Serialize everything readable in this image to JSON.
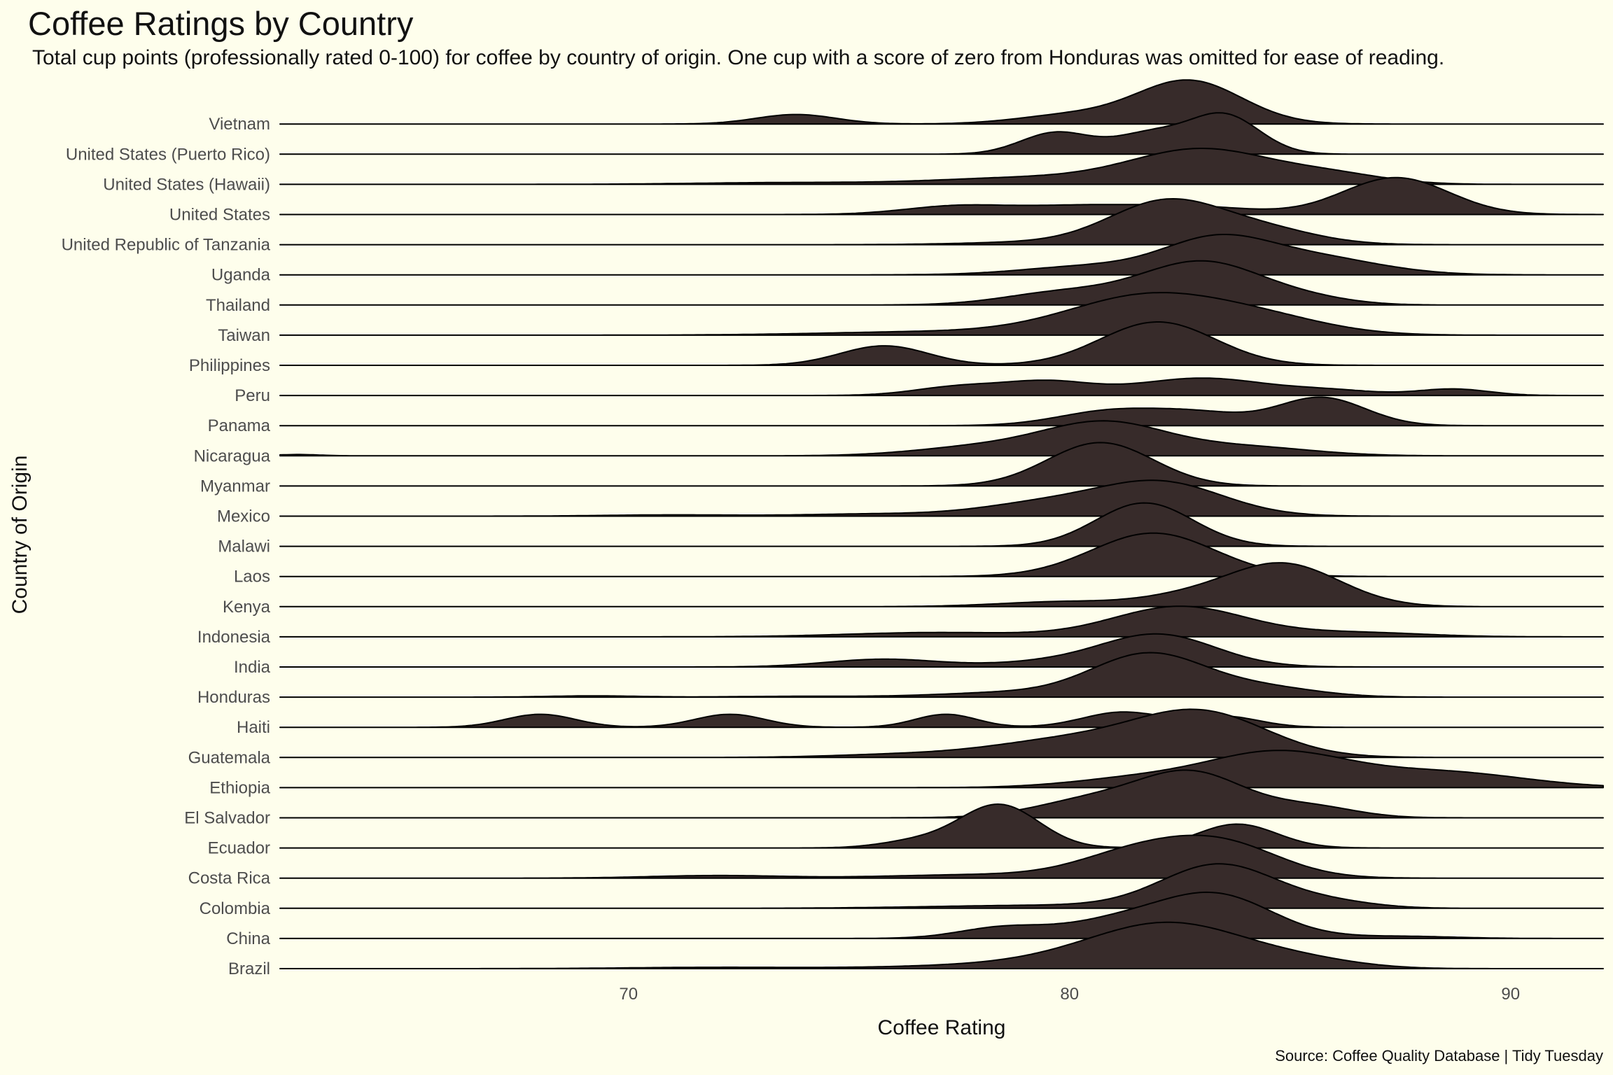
{
  "chart_data": {
    "type": "ridgeline",
    "title": "Coffee Ratings by Country",
    "subtitle": "Total cup points (professionally rated 0-100) for coffee by country of origin. One cup with a score of zero from Honduras was omitted for ease of reading.",
    "xlabel": "Coffee Rating",
    "ylabel": "Country of Origin",
    "caption": "Source: Coffee Quality Database | Tidy Tuesday",
    "xlim": [
      62.1,
      92.1
    ],
    "xticks": [
      70,
      80,
      90
    ],
    "fill_color": "#372b2a",
    "background_color": "#fefeec",
    "grid": false,
    "legend": "none",
    "series": [
      {
        "name": "Brazil",
        "peaks": [
          [
            82.3,
            1.0,
            1.8
          ],
          [
            79.5,
            0.12,
            2.5
          ],
          [
            85.5,
            0.12,
            1.2
          ],
          [
            72,
            0.03,
            2
          ]
        ]
      },
      {
        "name": "China",
        "peaks": [
          [
            83.3,
            1.0,
            1.3
          ],
          [
            78.5,
            0.25,
            1.0
          ],
          [
            81,
            0.35,
            1.2
          ],
          [
            87.5,
            0.05,
            1.2
          ]
        ]
      },
      {
        "name": "Colombia",
        "peaks": [
          [
            83.4,
            1.0,
            1.3
          ],
          [
            79.5,
            0.07,
            2.5
          ],
          [
            86,
            0.12,
            1.0
          ]
        ]
      },
      {
        "name": "Costa Rica",
        "peaks": [
          [
            83.5,
            0.75,
            1.3
          ],
          [
            81.5,
            0.55,
            1.3
          ],
          [
            78,
            0.08,
            2
          ],
          [
            72,
            0.06,
            1.5
          ]
        ]
      },
      {
        "name": "Ecuador",
        "peaks": [
          [
            78.4,
            1.0,
            0.9
          ],
          [
            83.8,
            0.55,
            0.9
          ],
          [
            76.5,
            0.15,
            0.8
          ]
        ]
      },
      {
        "name": "El Salvador",
        "peaks": [
          [
            82.8,
            1.0,
            1.2
          ],
          [
            80.5,
            0.4,
            1.3
          ],
          [
            85.5,
            0.25,
            1.0
          ]
        ]
      },
      {
        "name": "Ethiopia",
        "peaks": [
          [
            84.7,
            0.8,
            1.6
          ],
          [
            88.5,
            0.35,
            1.8
          ],
          [
            81.5,
            0.2,
            1.5
          ]
        ]
      },
      {
        "name": "Guatemala",
        "peaks": [
          [
            83,
            1.0,
            1.5
          ],
          [
            80,
            0.4,
            1.8
          ],
          [
            76,
            0.06,
            1.5
          ]
        ]
      },
      {
        "name": "Haiti",
        "peaks": [
          [
            81.2,
            0.35,
            0.9
          ],
          [
            68,
            0.3,
            0.8
          ],
          [
            72.3,
            0.3,
            0.8
          ],
          [
            77.2,
            0.3,
            0.7
          ],
          [
            83.5,
            0.25,
            0.8
          ]
        ]
      },
      {
        "name": "Honduras",
        "peaks": [
          [
            81.8,
            1.0,
            1.3
          ],
          [
            84.5,
            0.2,
            1.2
          ],
          [
            78.5,
            0.1,
            1.5
          ],
          [
            69.2,
            0.03,
            1.0
          ],
          [
            74,
            0.02,
            1.5
          ]
        ]
      },
      {
        "name": "India",
        "peaks": [
          [
            82,
            0.75,
            1.3
          ],
          [
            75.8,
            0.18,
            1.3
          ],
          [
            79.5,
            0.1,
            1.2
          ]
        ]
      },
      {
        "name": "Indonesia",
        "peaks": [
          [
            82.5,
            0.7,
            1.5
          ],
          [
            77,
            0.1,
            2
          ],
          [
            86.5,
            0.1,
            1.5
          ]
        ]
      },
      {
        "name": "Kenya",
        "peaks": [
          [
            84.8,
            1.0,
            1.3
          ],
          [
            80,
            0.12,
            1.5
          ],
          [
            82.5,
            0.15,
            1.0
          ]
        ]
      },
      {
        "name": "Laos",
        "peaks": [
          [
            81.9,
            1.0,
            1.4
          ]
        ]
      },
      {
        "name": "Malawi",
        "peaks": [
          [
            81.7,
            1.0,
            1.1
          ]
        ]
      },
      {
        "name": "Mexico",
        "peaks": [
          [
            82.1,
            0.75,
            1.4
          ],
          [
            79.5,
            0.3,
            1.5
          ],
          [
            75.5,
            0.05,
            1.5
          ],
          [
            71,
            0.03,
            1.5
          ]
        ]
      },
      {
        "name": "Myanmar",
        "peaks": [
          [
            80.7,
            1.0,
            1.2
          ]
        ]
      },
      {
        "name": "Nicaragua",
        "peaks": [
          [
            80.8,
            0.75,
            1.4
          ],
          [
            84,
            0.2,
            1.5
          ],
          [
            78,
            0.2,
            1.5
          ],
          [
            62.5,
            0.03,
            0.5
          ]
        ]
      },
      {
        "name": "Panama",
        "peaks": [
          [
            85.7,
            0.65,
            1.0
          ],
          [
            81,
            0.35,
            1.2
          ],
          [
            83,
            0.25,
            1.0
          ]
        ]
      },
      {
        "name": "Peru",
        "peaks": [
          [
            83,
            0.4,
            1.5
          ],
          [
            79.5,
            0.3,
            1.0
          ],
          [
            77.5,
            0.2,
            1.0
          ],
          [
            88.7,
            0.15,
            0.8
          ],
          [
            86,
            0.1,
            1.0
          ]
        ]
      },
      {
        "name": "Philippines",
        "peaks": [
          [
            82,
            1.0,
            1.3
          ],
          [
            75.8,
            0.45,
            1.0
          ]
        ]
      },
      {
        "name": "Taiwan",
        "peaks": [
          [
            81.8,
            0.9,
            1.8
          ],
          [
            84.5,
            0.3,
            1.5
          ],
          [
            77,
            0.08,
            2.5
          ]
        ]
      },
      {
        "name": "Thailand",
        "peaks": [
          [
            83,
            1.0,
            1.4
          ],
          [
            79.8,
            0.28,
            1.3
          ],
          [
            85.5,
            0.1,
            1.0
          ]
        ]
      },
      {
        "name": "Uganda",
        "peaks": [
          [
            83.3,
            0.75,
            1.2
          ],
          [
            85.5,
            0.4,
            1.5
          ],
          [
            80.5,
            0.2,
            1.5
          ]
        ]
      },
      {
        "name": "United Republic of Tanzania",
        "peaks": [
          [
            82.2,
            1.0,
            1.3
          ],
          [
            84.5,
            0.3,
            1.2
          ],
          [
            79,
            0.05,
            1.5
          ]
        ]
      },
      {
        "name": "United States",
        "peaks": [
          [
            87.4,
            0.85,
            1.2
          ],
          [
            82.5,
            0.2,
            1.5
          ],
          [
            77.5,
            0.2,
            1.2
          ],
          [
            80,
            0.15,
            1.2
          ]
        ]
      },
      {
        "name": "United States (Hawaii)",
        "peaks": [
          [
            83,
            0.8,
            1.6
          ],
          [
            79,
            0.15,
            2
          ],
          [
            73.5,
            0.04,
            2
          ],
          [
            86,
            0.2,
            1.2
          ]
        ]
      },
      {
        "name": "United States (Puerto Rico)",
        "peaks": [
          [
            83.5,
            0.9,
            0.8
          ],
          [
            79.7,
            0.5,
            0.8
          ],
          [
            81.8,
            0.45,
            0.8
          ]
        ]
      },
      {
        "name": "Vietnam",
        "peaks": [
          [
            82.7,
            1.0,
            1.2
          ],
          [
            73.8,
            0.22,
            0.9
          ],
          [
            80,
            0.2,
            1.2
          ]
        ]
      }
    ]
  }
}
